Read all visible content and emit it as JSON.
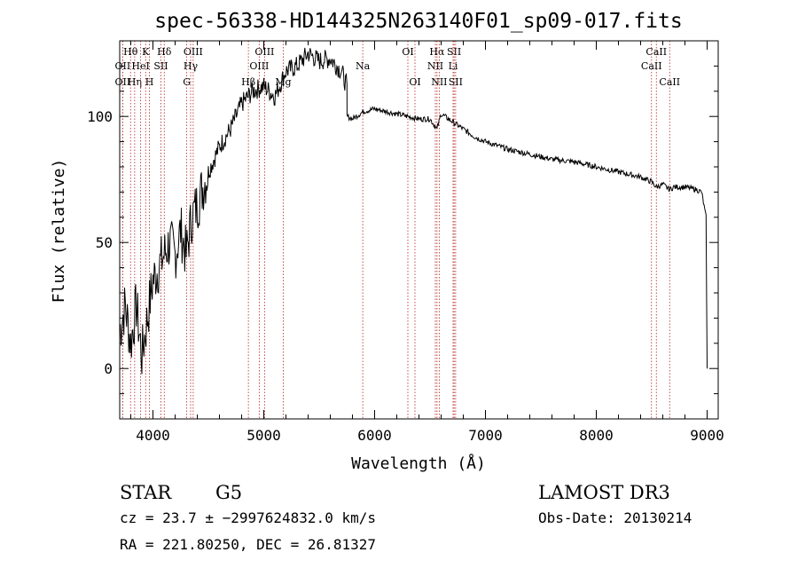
{
  "chart_data": {
    "type": "line",
    "title": "spec-56338-HD144325N263140F01_sp09-017.fits",
    "xlabel": "Wavelength (Å)",
    "ylabel": "Flux (relative)",
    "xlim": [
      3700,
      9100
    ],
    "ylim": [
      -20,
      130
    ],
    "x_ticks": [
      "4000",
      "5000",
      "6000",
      "7000",
      "8000",
      "9000"
    ],
    "y_ticks": [
      "0",
      "50",
      "100"
    ],
    "grid": false,
    "series": [
      {
        "x": [
          3700,
          3750,
          3800,
          3850,
          3900,
          3950,
          4000,
          4050,
          4100,
          4150,
          4200,
          4250,
          4300,
          4350,
          4400,
          4450,
          4500,
          4600,
          4700,
          4800,
          4900,
          5000,
          5100,
          5200,
          5300,
          5400,
          5500,
          5600,
          5700,
          5750,
          5751,
          5800,
          5900,
          6000,
          6100,
          6200,
          6300,
          6400,
          6500,
          6563,
          6600,
          6700,
          6800,
          6900,
          7000,
          7200,
          7400,
          7600,
          7800,
          8000,
          8200,
          8400,
          8500,
          8542,
          8600,
          8662,
          8700,
          8800,
          8900,
          8950,
          8990,
          9000
        ],
        "y": [
          15,
          25,
          10,
          25,
          5,
          20,
          35,
          40,
          45,
          50,
          45,
          55,
          45,
          60,
          65,
          72,
          78,
          88,
          95,
          105,
          110,
          112,
          108,
          118,
          120,
          125,
          122,
          123,
          118,
          112,
          100,
          99,
          102,
          103,
          102,
          101,
          100,
          99,
          99,
          95,
          101,
          98,
          95,
          92,
          90,
          87,
          85,
          83,
          82,
          80,
          78,
          76,
          74,
          72,
          73,
          71,
          72,
          72,
          71,
          70,
          60,
          0
        ]
      }
    ],
    "spectral_lines": [
      {
        "label": "Hθ",
        "x": 3798,
        "row": 1
      },
      {
        "label": "OII",
        "x": 3727,
        "row": 2
      },
      {
        "label": "OII",
        "x": 3727,
        "row": 3
      },
      {
        "label": "Hη",
        "x": 3835,
        "row": 3
      },
      {
        "label": "K",
        "x": 3934,
        "row": 1
      },
      {
        "label": "HeI",
        "x": 3889,
        "row": 2
      },
      {
        "label": "H",
        "x": 3968,
        "row": 3
      },
      {
        "label": "Hδ",
        "x": 4102,
        "row": 1
      },
      {
        "label": "SII",
        "x": 4072,
        "row": 2
      },
      {
        "label": "OIII",
        "x": 4363,
        "row": 1
      },
      {
        "label": "Hγ",
        "x": 4340,
        "row": 2
      },
      {
        "label": "G",
        "x": 4305,
        "row": 3
      },
      {
        "label": "Hβ",
        "x": 4861,
        "row": 3
      },
      {
        "label": "OIII",
        "x": 5007,
        "row": 1
      },
      {
        "label": "OIII",
        "x": 4959,
        "row": 2
      },
      {
        "label": "Mg",
        "x": 5175,
        "row": 3
      },
      {
        "label": "Na",
        "x": 5893,
        "row": 2
      },
      {
        "label": "OI",
        "x": 6300,
        "row": 1
      },
      {
        "label": "OI",
        "x": 6364,
        "row": 3
      },
      {
        "label": "Hα",
        "x": 6563,
        "row": 1
      },
      {
        "label": "NII",
        "x": 6548,
        "row": 2
      },
      {
        "label": "NII",
        "x": 6583,
        "row": 3
      },
      {
        "label": "SII",
        "x": 6717,
        "row": 1
      },
      {
        "label": "Li",
        "x": 6708,
        "row": 2
      },
      {
        "label": "SII",
        "x": 6731,
        "row": 3
      },
      {
        "label": "CaII",
        "x": 8542,
        "row": 1
      },
      {
        "label": "CaII",
        "x": 8498,
        "row": 2
      },
      {
        "label": "CaII",
        "x": 8662,
        "row": 3
      }
    ]
  },
  "info": {
    "object_type": "STAR",
    "subclass": "G5",
    "survey": "LAMOST DR3",
    "cz": "cz = 23.7 ± −2997624832.0 km/s",
    "obs_date": "Obs-Date: 20130214",
    "coords": "RA = 221.80250, DEC =  26.81327"
  }
}
